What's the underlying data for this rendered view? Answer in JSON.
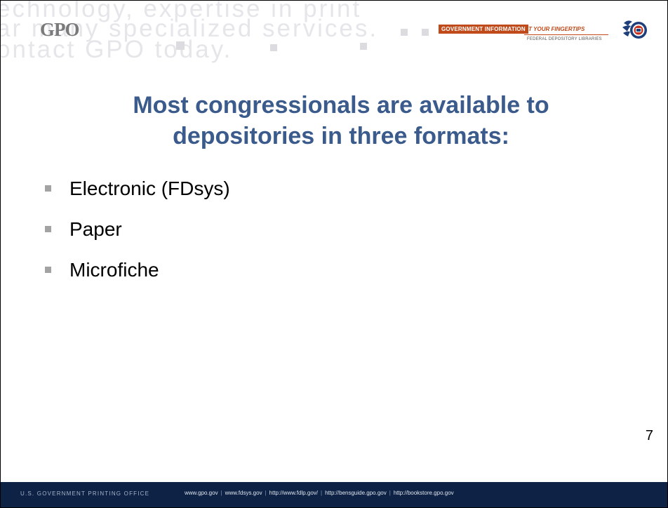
{
  "header": {
    "gpo_logo": "GPO",
    "watermark_lines": [
      "echnology, expertise in print",
      "ar many specialized services.",
      "ontact GPO today."
    ],
    "banner": {
      "badge": "GOVERNMENT INFORMATION",
      "tagline": "AT YOUR FINGERTIPS",
      "subtitle": "FEDERAL DEPOSITORY LIBRARIES"
    },
    "colors": {
      "banner_accent": "#c04a1a",
      "watermark": "#e6e6ea"
    }
  },
  "slide": {
    "title_line1": "Most congressionals are available to",
    "title_line2": "depositories in three formats:",
    "title_color": "#3b5b8c",
    "bullets": [
      {
        "label": "Electronic (FDsys)"
      },
      {
        "label": "Paper"
      },
      {
        "label": "Microfiche"
      }
    ],
    "page_number": "7"
  },
  "footer": {
    "org": "U.S. GOVERNMENT PRINTING OFFICE",
    "links": [
      "www.gpo.gov",
      "www.fdsys.gov",
      "http://www.fdlp.gov/",
      "http://bensguide.gpo.gov",
      "http://bookstore.gpo.gov"
    ],
    "separator": "|",
    "background": "#0d2245"
  }
}
